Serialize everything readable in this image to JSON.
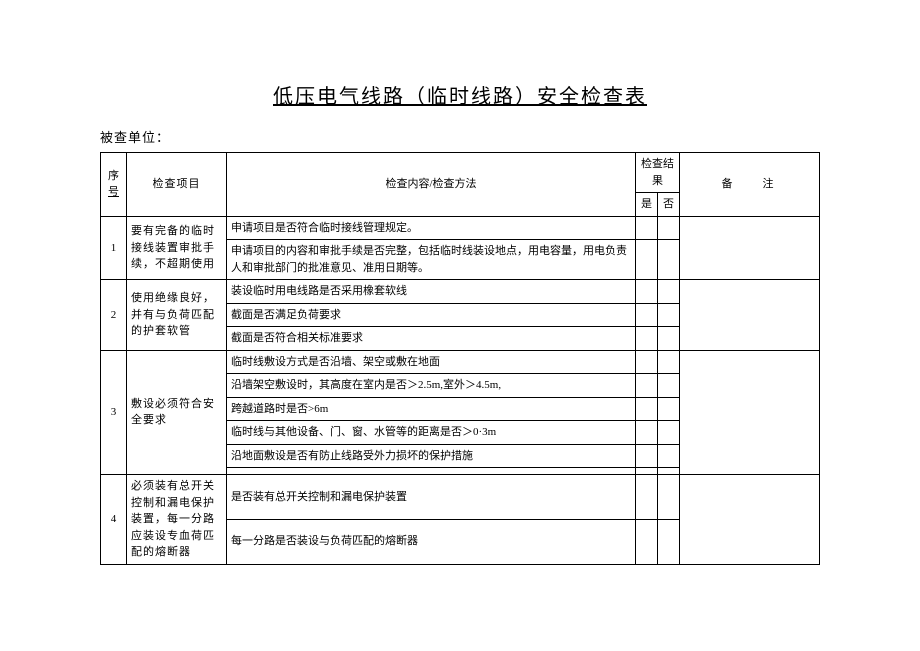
{
  "title": "低压电气线路（临时线路）安全检查表",
  "subtitle": "被查单位：",
  "headers": {
    "seq": "序",
    "seq2": "号",
    "item": "检查项目",
    "content": "检查内容/检查方法",
    "result": "检查结果",
    "yes": "是",
    "no": "否",
    "remark": "备注"
  },
  "rows": [
    {
      "seq": "1",
      "item": "要有完备的临时接线装置审批手续，不超期使用",
      "contents": [
        "申请项目是否符合临时接线管理规定。",
        "申请项目的内容和审批手续是否完整，包括临时线装设地点，用电容量，用电负责人和审批部门的批准意见、准用日期等。"
      ]
    },
    {
      "seq": "2",
      "item": "使用绝缘良好，并有与负荷匹配的护套软管",
      "contents": [
        "装设临时用电线路是否采用橡套软线",
        "截面是否满足负荷要求",
        "截面是否符合相关标准要求"
      ]
    },
    {
      "seq": "3",
      "item": "敷设必须符合安全要求",
      "contents": [
        "临时线敷设方式是否沿墙、架空或敷在地面",
        "沿墙架空敷设时，其高度在室内是否＞2.5m,室外＞4.5m,",
        "跨越道路时是否>6m",
        "临时线与其他设备、门、窗、水管等的距离是否＞0·3m",
        "沿地面敷设是否有防止线路受外力损坏的保护措施",
        ""
      ]
    },
    {
      "seq": "4",
      "item": "必须装有总开关控制和漏电保护装置，每一分路应装设专血荷匹配的熔断器",
      "contents": [
        "是否装有总开关控制和漏电保护装置",
        "每一分路是否装设与负荷匹配的熔断器"
      ]
    }
  ]
}
